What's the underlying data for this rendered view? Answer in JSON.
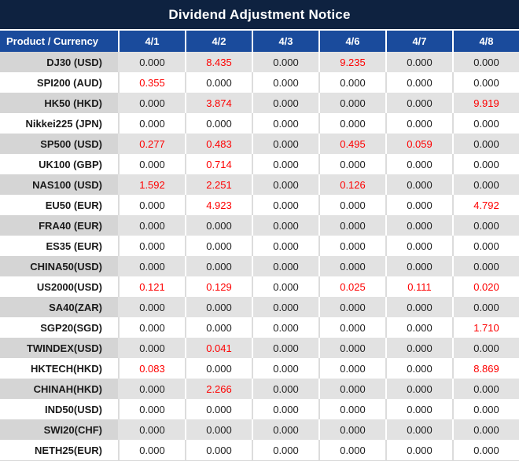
{
  "title": "Dividend Adjustment Notice",
  "colors": {
    "title_bar_bg": "#0e2240",
    "header_row_bg": "#1a4b9c",
    "positive_value_red": "#fe0000",
    "row_stripe_gray": "#e2e2e2",
    "product_stripe_gray": "#d5d5d5"
  },
  "table": {
    "product_header": "Product / Currency",
    "date_headers": [
      "4/1",
      "4/2",
      "4/3",
      "4/6",
      "4/7",
      "4/8"
    ],
    "rows": [
      {
        "product": "DJ30 (USD)",
        "values": [
          "0.000",
          "8.435",
          "0.000",
          "9.235",
          "0.000",
          "0.000"
        ]
      },
      {
        "product": "SPI200 (AUD)",
        "values": [
          "0.355",
          "0.000",
          "0.000",
          "0.000",
          "0.000",
          "0.000"
        ]
      },
      {
        "product": "HK50 (HKD)",
        "values": [
          "0.000",
          "3.874",
          "0.000",
          "0.000",
          "0.000",
          "9.919"
        ]
      },
      {
        "product": "Nikkei225 (JPN)",
        "values": [
          "0.000",
          "0.000",
          "0.000",
          "0.000",
          "0.000",
          "0.000"
        ]
      },
      {
        "product": "SP500 (USD)",
        "values": [
          "0.277",
          "0.483",
          "0.000",
          "0.495",
          "0.059",
          "0.000"
        ]
      },
      {
        "product": "UK100 (GBP)",
        "values": [
          "0.000",
          "0.714",
          "0.000",
          "0.000",
          "0.000",
          "0.000"
        ]
      },
      {
        "product": "NAS100 (USD)",
        "values": [
          "1.592",
          "2.251",
          "0.000",
          "0.126",
          "0.000",
          "0.000"
        ]
      },
      {
        "product": "EU50 (EUR)",
        "values": [
          "0.000",
          "4.923",
          "0.000",
          "0.000",
          "0.000",
          "4.792"
        ]
      },
      {
        "product": "FRA40 (EUR)",
        "values": [
          "0.000",
          "0.000",
          "0.000",
          "0.000",
          "0.000",
          "0.000"
        ]
      },
      {
        "product": "ES35 (EUR)",
        "values": [
          "0.000",
          "0.000",
          "0.000",
          "0.000",
          "0.000",
          "0.000"
        ]
      },
      {
        "product": "CHINA50(USD)",
        "values": [
          "0.000",
          "0.000",
          "0.000",
          "0.000",
          "0.000",
          "0.000"
        ]
      },
      {
        "product": "US2000(USD)",
        "values": [
          "0.121",
          "0.129",
          "0.000",
          "0.025",
          "0.111",
          "0.020"
        ]
      },
      {
        "product": "SA40(ZAR)",
        "values": [
          "0.000",
          "0.000",
          "0.000",
          "0.000",
          "0.000",
          "0.000"
        ]
      },
      {
        "product": "SGP20(SGD)",
        "values": [
          "0.000",
          "0.000",
          "0.000",
          "0.000",
          "0.000",
          "1.710"
        ]
      },
      {
        "product": "TWINDEX(USD)",
        "values": [
          "0.000",
          "0.041",
          "0.000",
          "0.000",
          "0.000",
          "0.000"
        ]
      },
      {
        "product": "HKTECH(HKD)",
        "values": [
          "0.083",
          "0.000",
          "0.000",
          "0.000",
          "0.000",
          "8.869"
        ]
      },
      {
        "product": "CHINAH(HKD)",
        "values": [
          "0.000",
          "2.266",
          "0.000",
          "0.000",
          "0.000",
          "0.000"
        ]
      },
      {
        "product": "IND50(USD)",
        "values": [
          "0.000",
          "0.000",
          "0.000",
          "0.000",
          "0.000",
          "0.000"
        ]
      },
      {
        "product": "SWI20(CHF)",
        "values": [
          "0.000",
          "0.000",
          "0.000",
          "0.000",
          "0.000",
          "0.000"
        ]
      },
      {
        "product": "NETH25(EUR)",
        "values": [
          "0.000",
          "0.000",
          "0.000",
          "0.000",
          "0.000",
          "0.000"
        ]
      }
    ]
  }
}
